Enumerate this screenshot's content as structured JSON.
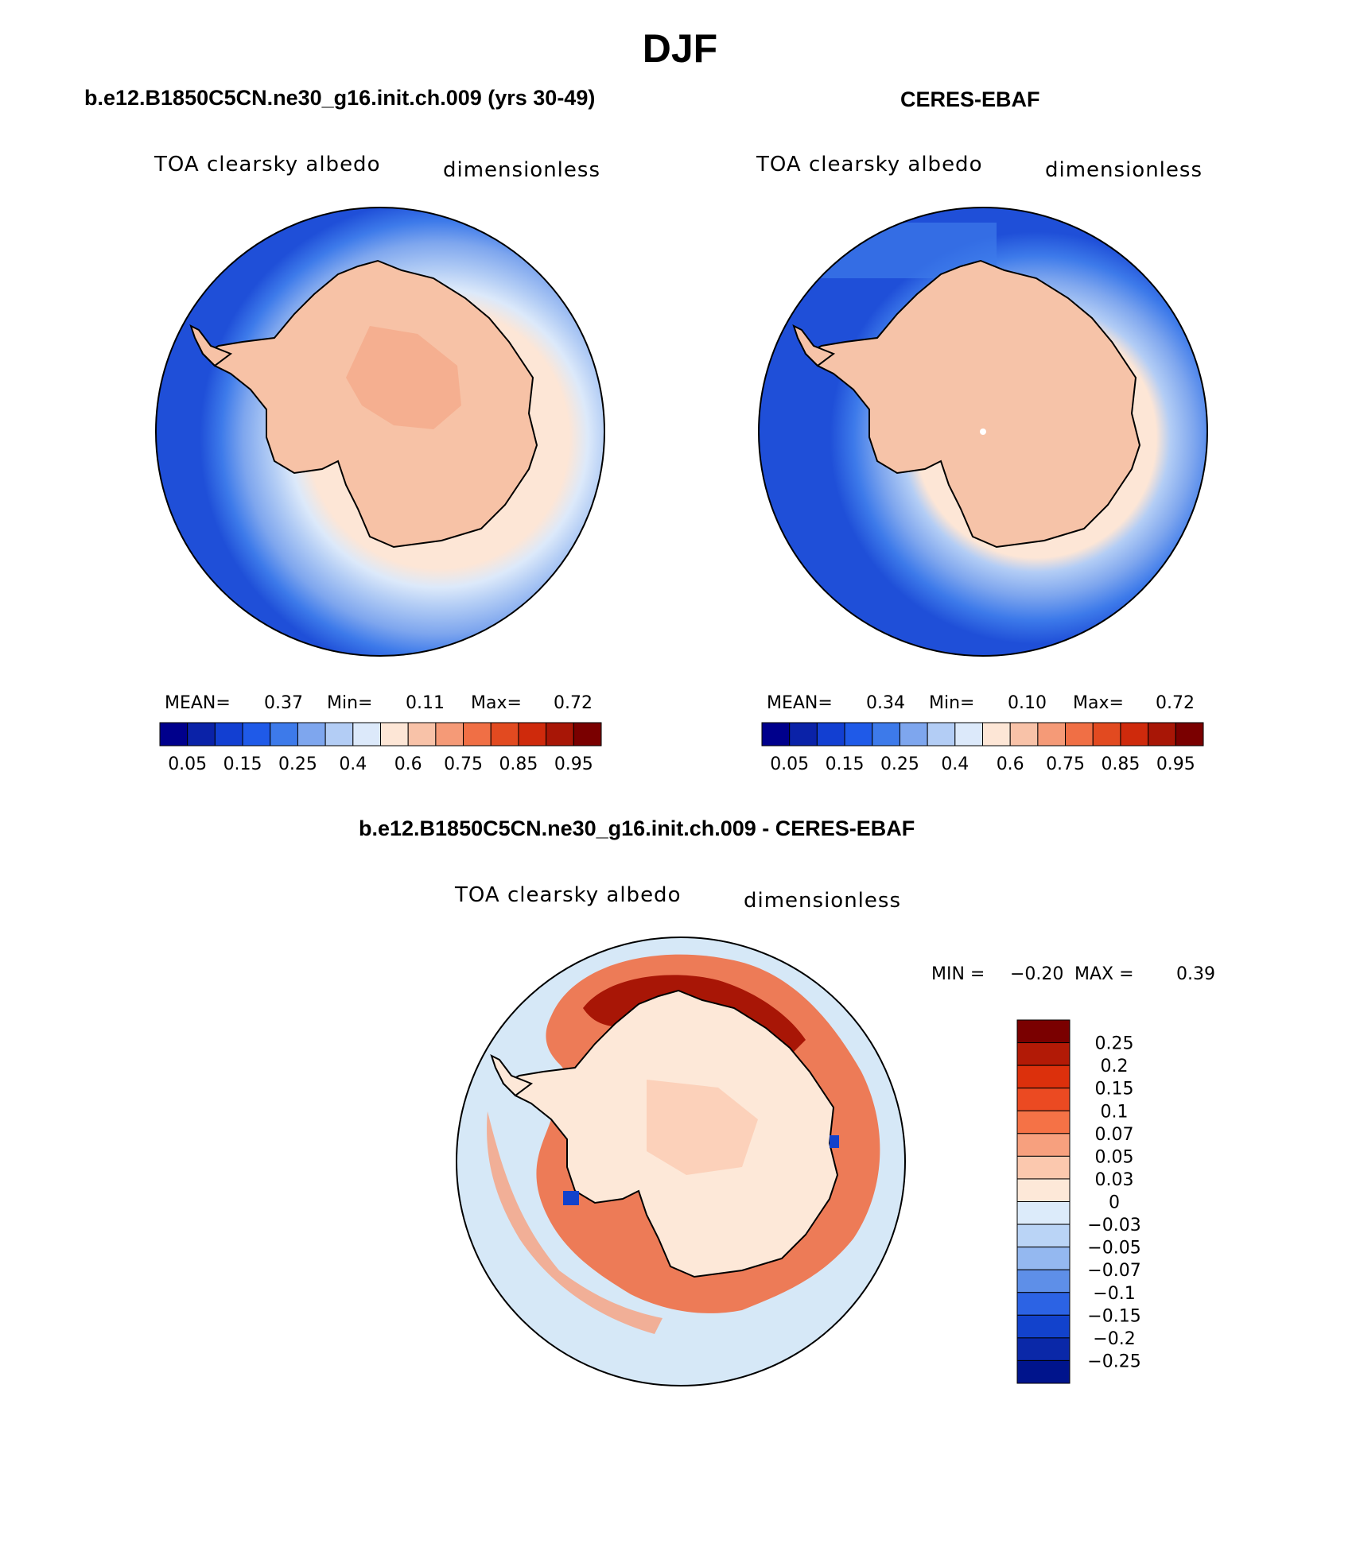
{
  "title": "DJF",
  "panels": {
    "model": {
      "title": "b.e12.B1850C5CN.ne30_g16.init.ch.009 (yrs 30-49)",
      "label_left": "TOA clearsky albedo",
      "label_right": "dimensionless",
      "stats": {
        "mean_label": "MEAN=",
        "mean": "0.37",
        "min_label": "Min=",
        "min": "0.11",
        "max_label": "Max=",
        "max": "0.72"
      }
    },
    "obs": {
      "title": "CERES-EBAF",
      "label_left": "TOA clearsky albedo",
      "label_right": "dimensionless",
      "stats": {
        "mean_label": "MEAN=",
        "mean": "0.34",
        "min_label": "Min=",
        "min": "0.10",
        "max_label": "Max=",
        "max": "0.72"
      }
    },
    "diff": {
      "title": "b.e12.B1850C5CN.ne30_g16.init.ch.009 - CERES-EBAF",
      "label_left": "TOA clearsky albedo",
      "label_right": "dimensionless",
      "stats": {
        "min_label": "MIN =",
        "min": "−0.20",
        "max_label": "MAX =",
        "max": "0.39"
      }
    }
  },
  "colors": {
    "ocean_model": "#1f4fd8",
    "ocean_obs": "#1f4fd8",
    "ice_light": "#fde6d6",
    "land_model": "#f7c2a6",
    "land_obs": "#f6c3a8",
    "diff_background": "#d6e8f7"
  },
  "chart_data": [
    {
      "type": "heatmap",
      "projection": "south-polar-stereographic",
      "variable": "TOA clearsky albedo",
      "units": "dimensionless",
      "colorbar": {
        "orientation": "horizontal",
        "levels": [
          0.05,
          0.1,
          0.15,
          0.2,
          0.25,
          0.3,
          0.4,
          0.5,
          0.6,
          0.7,
          0.75,
          0.8,
          0.85,
          0.9,
          0.95
        ],
        "tick_labels": [
          "0.05",
          "0.15",
          "0.25",
          "0.4",
          "0.6",
          "0.75",
          "0.85",
          "0.95"
        ],
        "colors": [
          "#00008c",
          "#0a22a8",
          "#123fd2",
          "#1f5ae8",
          "#3d7aea",
          "#7ea6ee",
          "#b3cdf5",
          "#dce9fa",
          "#fde6d6",
          "#f8c2a8",
          "#f59a77",
          "#f06f45",
          "#e24a20",
          "#cf2a0c",
          "#a81606",
          "#7a0000"
        ]
      },
      "stats": {
        "mean": 0.37,
        "min": 0.11,
        "max": 0.72
      }
    },
    {
      "type": "heatmap",
      "projection": "south-polar-stereographic",
      "variable": "TOA clearsky albedo",
      "units": "dimensionless",
      "colorbar": {
        "orientation": "horizontal",
        "levels": [
          0.05,
          0.1,
          0.15,
          0.2,
          0.25,
          0.3,
          0.4,
          0.5,
          0.6,
          0.7,
          0.75,
          0.8,
          0.85,
          0.9,
          0.95
        ],
        "tick_labels": [
          "0.05",
          "0.15",
          "0.25",
          "0.4",
          "0.6",
          "0.75",
          "0.85",
          "0.95"
        ],
        "colors": [
          "#00008c",
          "#0a22a8",
          "#123fd2",
          "#1f5ae8",
          "#3d7aea",
          "#7ea6ee",
          "#b3cdf5",
          "#dce9fa",
          "#fde6d6",
          "#f8c2a8",
          "#f59a77",
          "#f06f45",
          "#e24a20",
          "#cf2a0c",
          "#a81606",
          "#7a0000"
        ]
      },
      "stats": {
        "mean": 0.34,
        "min": 0.1,
        "max": 0.72
      }
    },
    {
      "type": "heatmap",
      "projection": "south-polar-stereographic",
      "variable": "TOA clearsky albedo",
      "units": "dimensionless",
      "colorbar": {
        "orientation": "vertical",
        "tick_labels": [
          "0.25",
          "0.2",
          "0.15",
          "0.1",
          "0.07",
          "0.05",
          "0.03",
          "0",
          "−0.03",
          "−0.05",
          "−0.07",
          "−0.1",
          "−0.15",
          "−0.2",
          "−0.25"
        ],
        "colors": [
          "#7a0000",
          "#b21a06",
          "#dc300c",
          "#eb4a22",
          "#f57246",
          "#f7a07e",
          "#fbc8ae",
          "#fde8d8",
          "#dcebfa",
          "#bad4f6",
          "#94b8f0",
          "#5e8fe8",
          "#2c63e4",
          "#1242cc",
          "#0a28a8",
          "#00148c"
        ]
      },
      "stats": {
        "min": -0.2,
        "max": 0.39
      }
    }
  ]
}
